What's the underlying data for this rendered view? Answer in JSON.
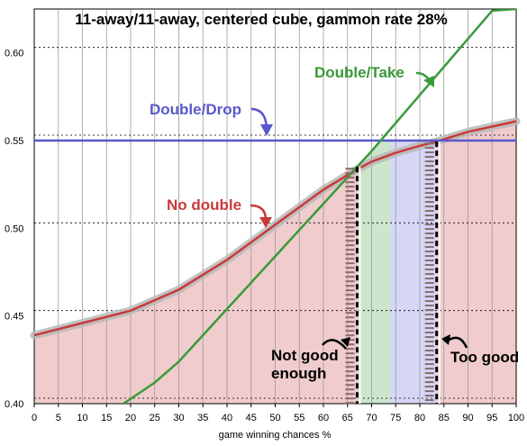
{
  "chart_data": {
    "type": "line",
    "title": "11-away/11-away, centered cube, gammon rate 28%",
    "xlabel": "game winning chances %",
    "ylabel": "",
    "xlim": [
      0,
      100
    ],
    "ylim": [
      0.4,
      0.625
    ],
    "xticks": [
      0,
      5,
      10,
      15,
      20,
      25,
      30,
      35,
      40,
      45,
      50,
      55,
      60,
      65,
      70,
      75,
      80,
      85,
      90,
      95,
      100
    ],
    "xtick_labels": [
      "0",
      "5",
      "10",
      "15",
      "20",
      "25",
      "30",
      "35",
      "40",
      "45",
      "50",
      "55",
      "60",
      "65",
      "70",
      "75",
      "80",
      "85",
      "90",
      "95",
      "100"
    ],
    "yticks": [
      0.4,
      0.45,
      0.5,
      0.55,
      0.6
    ],
    "ytick_labels": [
      "0.40",
      "0.45",
      "0.50",
      "0.55",
      "0.60"
    ],
    "grid": "vertical",
    "series": [
      {
        "name": "No double",
        "color": "#c83a3a",
        "x": [
          0,
          10,
          20,
          30,
          40,
          50,
          60,
          66,
          70,
          75,
          80,
          83,
          90,
          100
        ],
        "y": [
          0.439,
          0.446,
          0.453,
          0.465,
          0.482,
          0.502,
          0.522,
          0.532,
          0.538,
          0.543,
          0.547,
          0.549,
          0.555,
          0.561
        ]
      },
      {
        "name": "Double/Take",
        "color": "#3a9a3a",
        "x": [
          18.5,
          25,
          30,
          40,
          50,
          60,
          66,
          70,
          75,
          80,
          85,
          90,
          95,
          100
        ],
        "y": [
          0.4,
          0.412,
          0.424,
          0.454,
          0.484,
          0.514,
          0.532,
          0.544,
          0.56,
          0.576,
          0.592,
          0.608,
          0.624,
          0.64
        ]
      },
      {
        "name": "Double/Drop",
        "color": "#5858cc",
        "x": [
          0,
          100
        ],
        "y": [
          0.55,
          0.55
        ]
      }
    ],
    "regions": [
      {
        "name": "Not good enough",
        "color": "#f0cccc",
        "x_from": 0,
        "x_to": 67
      },
      {
        "name": "Double/Take",
        "color": "#cce6cc",
        "x_from": 67,
        "x_to": 74
      },
      {
        "name": "Double/Drop",
        "color": "#d6d6f6",
        "x_from": 74,
        "x_to": 83.5
      },
      {
        "name": "Too good",
        "color": "#f0cccc",
        "x_from": 83.5,
        "x_to": 100
      }
    ],
    "thresholds": [
      67,
      83.5
    ],
    "annotations": [
      {
        "text": "Double/Drop",
        "color": "#5858cc"
      },
      {
        "text": "Double/Take",
        "color": "#3a9a3a"
      },
      {
        "text": "No double",
        "color": "#c83a3a"
      },
      {
        "text": "Not good",
        "color": "#000000"
      },
      {
        "text": "enough",
        "color": "#000000"
      },
      {
        "text": "Too good",
        "color": "#000000"
      }
    ]
  }
}
